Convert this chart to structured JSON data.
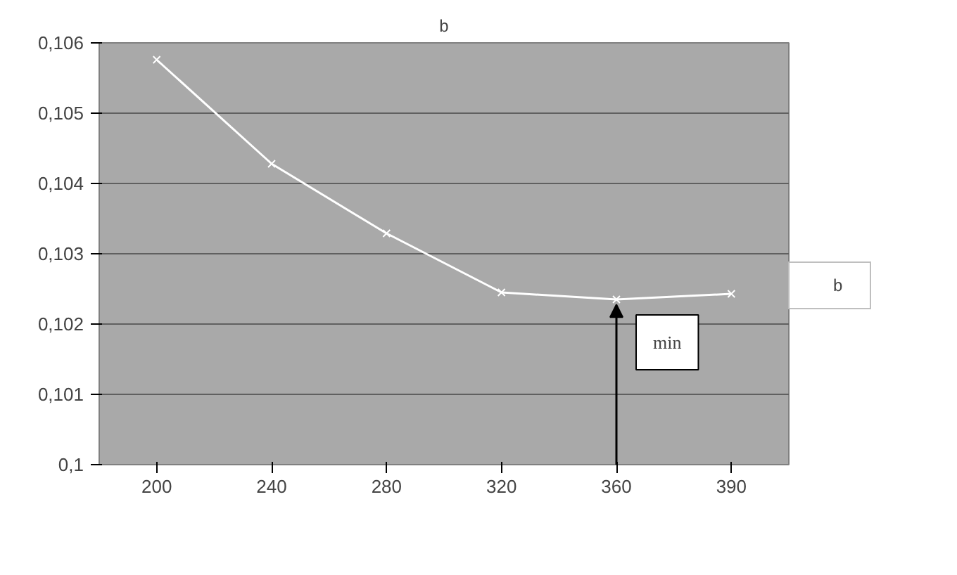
{
  "chart_data": {
    "type": "line",
    "title": "b",
    "categories": [
      "200",
      "240",
      "280",
      "320",
      "360",
      "390"
    ],
    "series": [
      {
        "name": "b",
        "color": "#ffffff",
        "values": [
          0.10576,
          0.10428,
          0.10329,
          0.10245,
          0.10235,
          0.10243
        ]
      }
    ],
    "ylim": [
      0.1,
      0.106
    ],
    "yticks": [
      {
        "value": 0.1,
        "label": "0,1"
      },
      {
        "value": 0.101,
        "label": "0,101"
      },
      {
        "value": 0.102,
        "label": "0,102"
      },
      {
        "value": 0.103,
        "label": "0,103"
      },
      {
        "value": 0.104,
        "label": "0,104"
      },
      {
        "value": 0.105,
        "label": "0,105"
      },
      {
        "value": 0.106,
        "label": "0,106"
      }
    ],
    "annotations": [
      {
        "text": "min",
        "x": "360",
        "y": 0.10235
      }
    ],
    "grid": "y",
    "legend": "right",
    "marker": "cross",
    "line_style": "solid"
  }
}
